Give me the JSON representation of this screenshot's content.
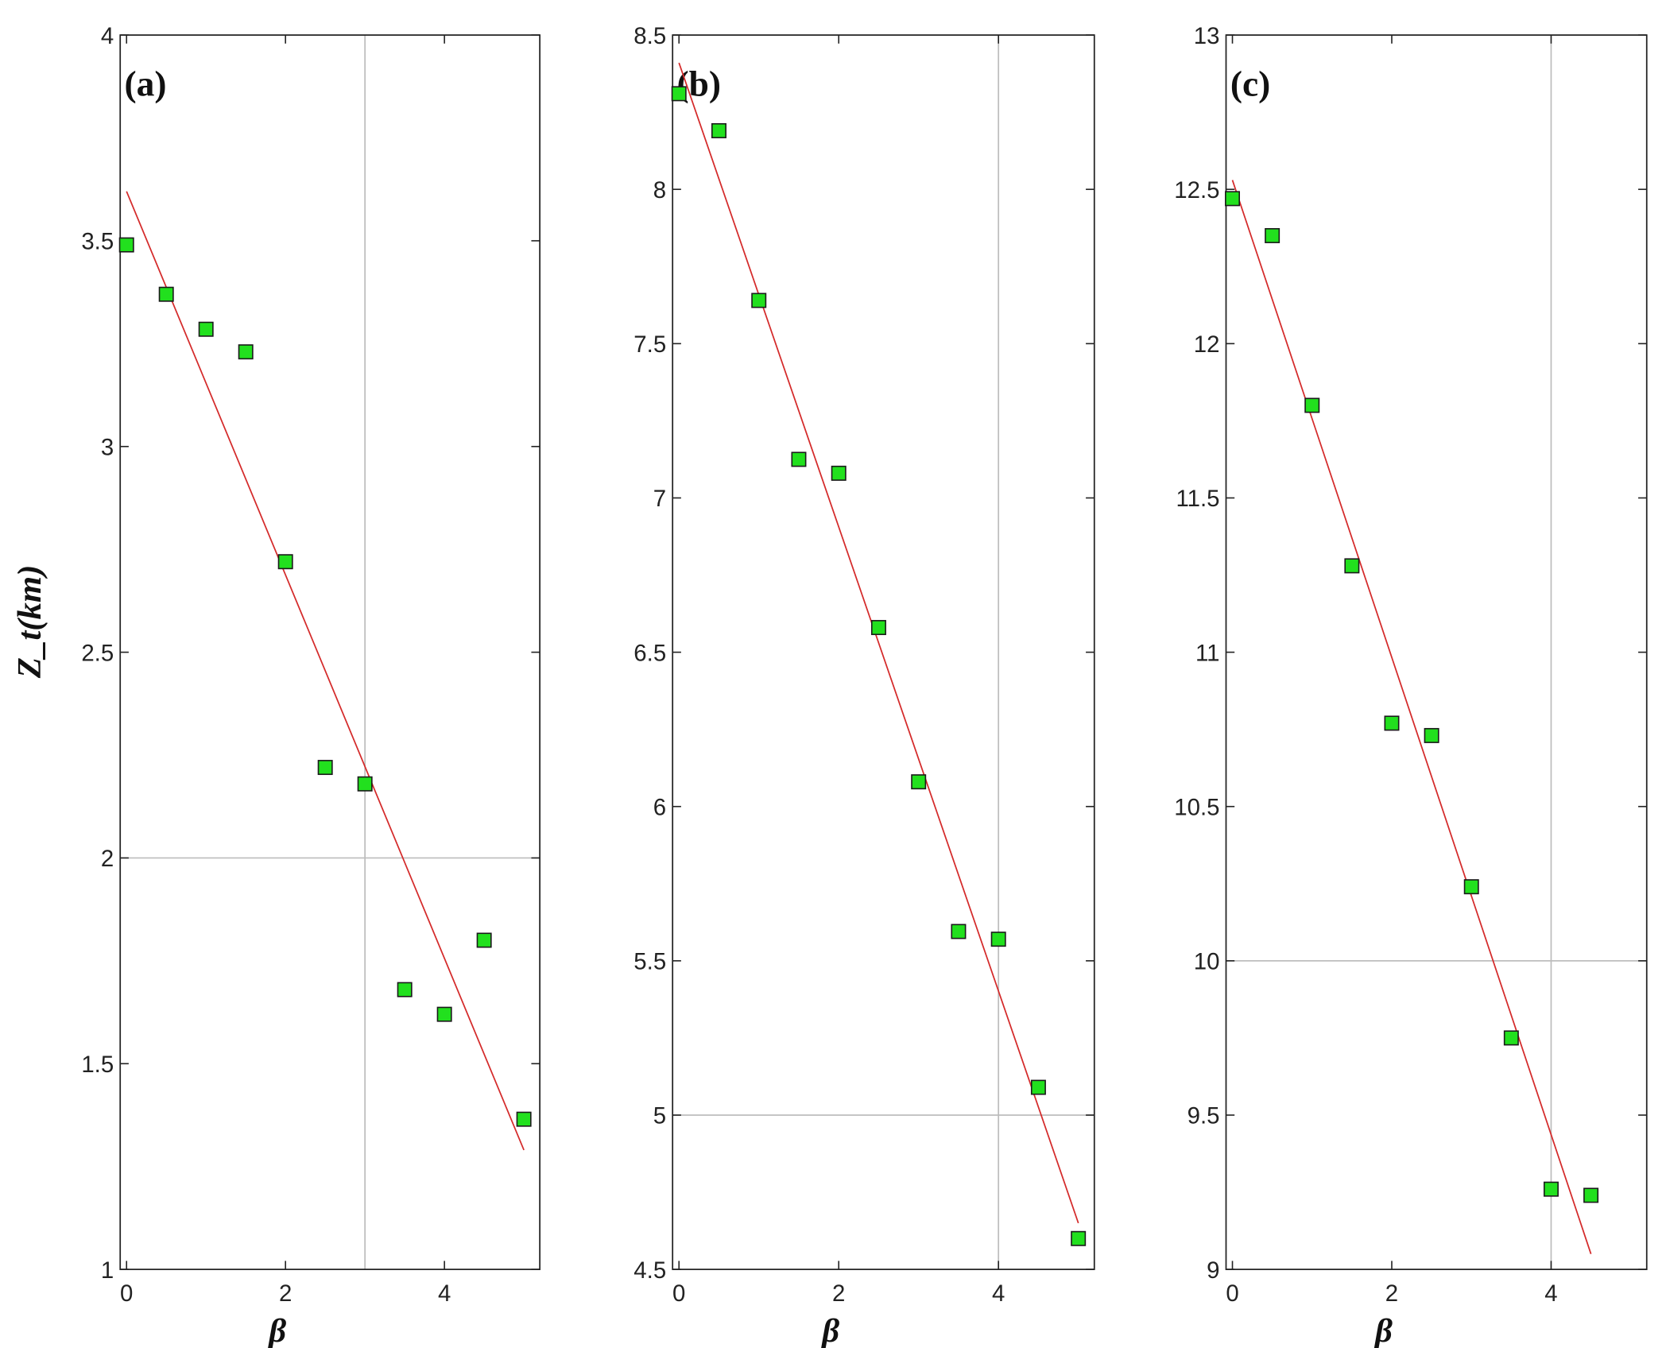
{
  "chart_data": [
    {
      "type": "scatter",
      "panel_label": "(a)",
      "xlabel": "β",
      "ylabel": "Z_t(km)",
      "ylabel_main": "Z",
      "ylabel_sub": "t",
      "ylabel_unit": "(km)",
      "xlim": [
        -0.08,
        5.2
      ],
      "ylim": [
        1,
        4
      ],
      "xticks": [
        0,
        2,
        4
      ],
      "yticks": [
        1,
        1.5,
        2,
        2.5,
        3,
        3.5,
        4
      ],
      "ytick_labels": [
        "1",
        "1.5",
        "2",
        "2.5",
        "3",
        "3.5",
        "4"
      ],
      "grid": {
        "x": [
          3
        ],
        "y": [
          2
        ]
      },
      "x": [
        0,
        0.5,
        1,
        1.5,
        2,
        2.5,
        3,
        3.5,
        4,
        4.5,
        5
      ],
      "y": [
        3.49,
        3.37,
        3.285,
        3.23,
        2.72,
        2.22,
        2.18,
        1.68,
        1.62,
        1.8,
        1.365
      ],
      "fit_line": {
        "x": [
          0,
          5
        ],
        "y": [
          3.62,
          1.29
        ]
      }
    },
    {
      "type": "scatter",
      "panel_label": "(b)",
      "xlabel": "β",
      "xlim": [
        -0.08,
        5.2
      ],
      "ylim": [
        4.5,
        8.5
      ],
      "xticks": [
        0,
        2,
        4
      ],
      "yticks": [
        4.5,
        5,
        5.5,
        6,
        6.5,
        7,
        7.5,
        8,
        8.5
      ],
      "ytick_labels": [
        "4.5",
        "5",
        "5.5",
        "6",
        "6.5",
        "7",
        "7.5",
        "8",
        "8.5"
      ],
      "grid": {
        "x": [
          4
        ],
        "y": [
          5
        ]
      },
      "x": [
        0,
        0.5,
        1,
        1.5,
        2,
        2.5,
        3,
        3.5,
        4,
        4.5,
        5
      ],
      "y": [
        8.31,
        8.19,
        7.64,
        7.125,
        7.08,
        6.58,
        6.08,
        5.595,
        5.57,
        5.09,
        4.6
      ],
      "fit_line": {
        "x": [
          0,
          5
        ],
        "y": [
          8.41,
          4.65
        ]
      }
    },
    {
      "type": "scatter",
      "panel_label": "(c)",
      "xlabel": "β",
      "xlim": [
        -0.08,
        5.2
      ],
      "ylim": [
        9,
        13
      ],
      "xticks": [
        0,
        2,
        4
      ],
      "yticks": [
        9,
        9.5,
        10,
        10.5,
        11,
        11.5,
        12,
        12.5,
        13
      ],
      "ytick_labels": [
        "9",
        "9.5",
        "10",
        "10.5",
        "11",
        "11.5",
        "12",
        "12.5",
        "13"
      ],
      "grid": {
        "x": [
          4
        ],
        "y": [
          10
        ]
      },
      "x": [
        0,
        0.5,
        1,
        1.5,
        2,
        2.5,
        3,
        3.5,
        4,
        4.5
      ],
      "y": [
        12.47,
        12.35,
        11.8,
        11.28,
        10.77,
        10.73,
        10.24,
        9.75,
        9.26,
        9.24
      ],
      "fit_line": {
        "x": [
          0,
          4.5
        ],
        "y": [
          12.53,
          9.05
        ]
      }
    }
  ],
  "colors": {
    "marker_fill": "#22e01e",
    "marker_edge": "#1a1a1a",
    "fit_line": "#d42a2a",
    "grid": "#bdbdbd",
    "axis": "#222222"
  }
}
